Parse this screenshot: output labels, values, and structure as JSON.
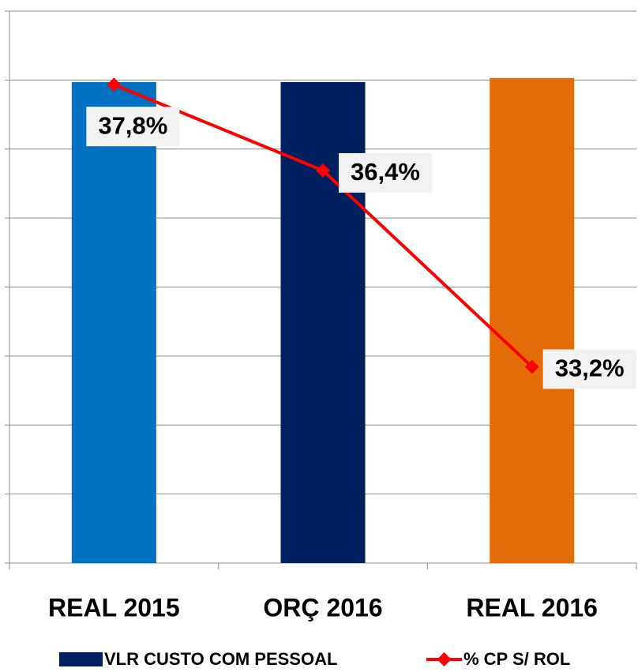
{
  "chart_data": {
    "type": "bar",
    "categories": [
      "REAL 2015",
      "ORÇ 2016",
      "REAL 2016"
    ],
    "series": [
      {
        "name": "VLR CUSTO COM PESSOAL",
        "color": "#002060",
        "colors": [
          "#0070c0",
          "#002060",
          "#e36c09"
        ],
        "values": [
          6.97,
          6.97,
          7.03
        ]
      },
      {
        "name": "% CP S/ ROL",
        "type": "line",
        "axis": "y2",
        "color": "#ff0000",
        "values": [
          37.8,
          36.4,
          33.2
        ],
        "value_labels": [
          "37,8%",
          "36,4%",
          "33,2%"
        ]
      }
    ],
    "ylim": [
      0,
      8
    ],
    "yticks": [
      0,
      1,
      2,
      3,
      4,
      5,
      6,
      7,
      8
    ],
    "y2lim": [
      30,
      39
    ],
    "grid": true,
    "legend": "bottom"
  }
}
